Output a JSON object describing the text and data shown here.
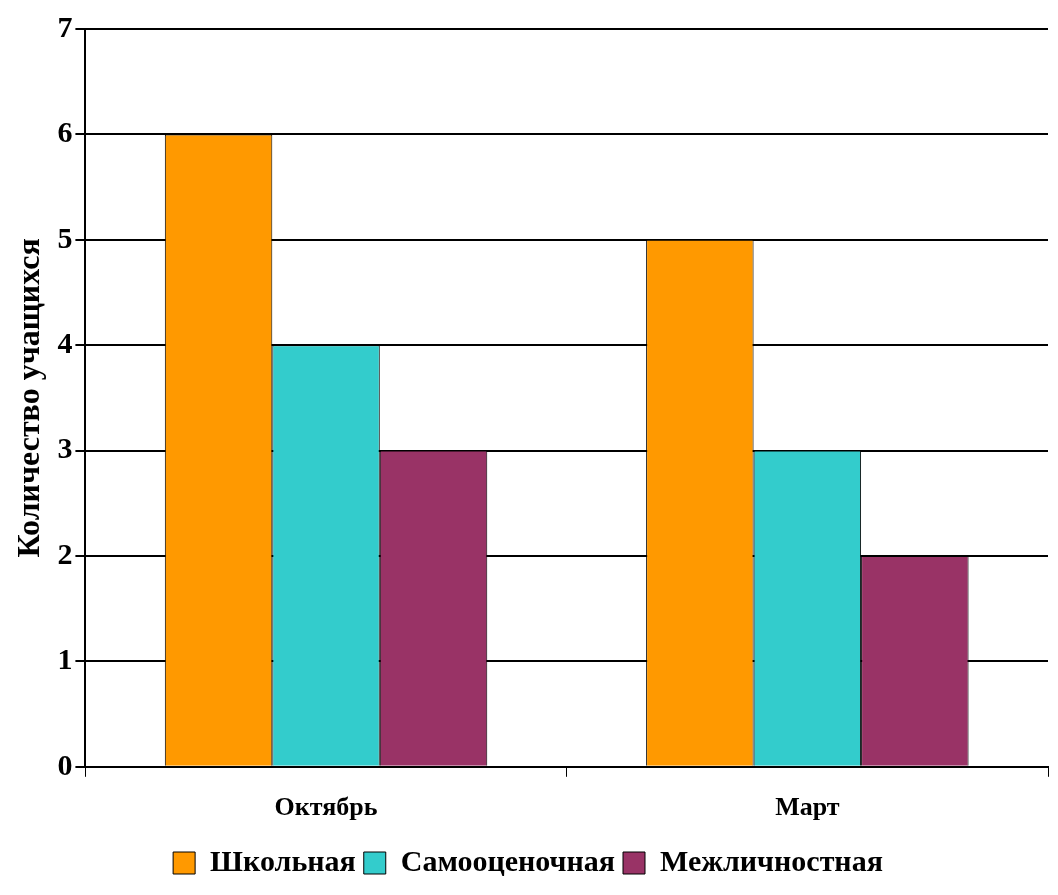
{
  "chart_data": {
    "type": "bar",
    "ylabel": "Количество учащихся",
    "categories": [
      "Октябрь",
      "Март"
    ],
    "series": [
      {
        "name": "Школьная",
        "color": "#ff9900",
        "values": [
          6,
          5
        ]
      },
      {
        "name": "Самооценочная",
        "color": "#33cccc",
        "values": [
          4,
          3
        ]
      },
      {
        "name": "Межличностная",
        "color": "#993366",
        "values": [
          3,
          2
        ]
      }
    ],
    "ylim": [
      0,
      7
    ],
    "yticks": [
      0,
      1,
      2,
      3,
      4,
      5,
      6,
      7
    ],
    "grid": "y",
    "legend": "bottom"
  }
}
